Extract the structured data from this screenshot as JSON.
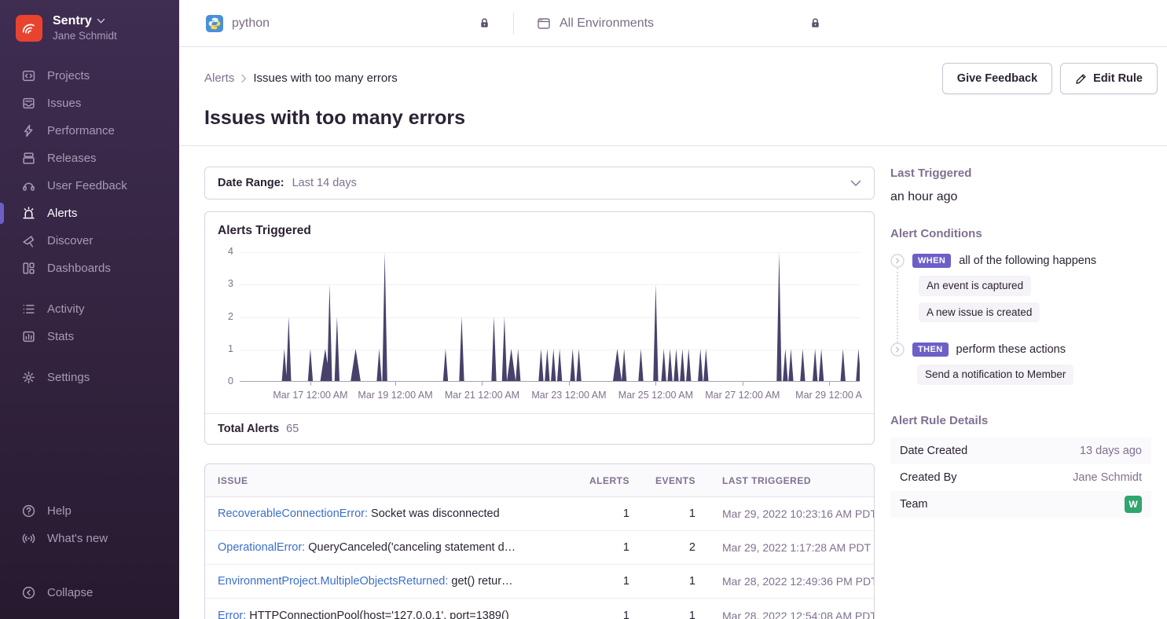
{
  "colors": {
    "accent": "#6C5FC7",
    "link_blue": "#3B6ECC",
    "chart_spike": "#46426B",
    "team_badge_green": "#2EA66E",
    "logo_red": "#E8432F"
  },
  "sidebar": {
    "org_name": "Sentry",
    "user_name": "Jane Schmidt",
    "primary": [
      {
        "label": "Projects"
      },
      {
        "label": "Issues"
      },
      {
        "label": "Performance"
      },
      {
        "label": "Releases"
      },
      {
        "label": "User Feedback"
      },
      {
        "label": "Alerts",
        "active": true
      },
      {
        "label": "Discover"
      },
      {
        "label": "Dashboards"
      }
    ],
    "secondary": [
      {
        "label": "Activity"
      },
      {
        "label": "Stats"
      }
    ],
    "tertiary": [
      {
        "label": "Settings"
      }
    ],
    "footer": [
      {
        "label": "Help"
      },
      {
        "label": "What's new"
      }
    ],
    "collapse_label": "Collapse"
  },
  "topbar": {
    "project": "python",
    "environment": "All Environments"
  },
  "header": {
    "breadcrumb_parent": "Alerts",
    "breadcrumb_current": "Issues with too many errors",
    "title": "Issues with too many errors",
    "give_feedback_label": "Give Feedback",
    "edit_rule_label": "Edit Rule"
  },
  "filters": {
    "date_range_label": "Date Range:",
    "date_range_value": "Last 14 days"
  },
  "chart_data": {
    "type": "area",
    "title": "Alerts Triggered",
    "ylabel": "",
    "ylim": [
      0,
      4
    ],
    "yticks": [
      0,
      1,
      2,
      3,
      4
    ],
    "grid": true,
    "xticks": [
      {
        "pos": 11.4,
        "label": "Mar 17 12:00 AM"
      },
      {
        "pos": 25.1,
        "label": "Mar 19 12:00 AM"
      },
      {
        "pos": 39.1,
        "label": "Mar 21 12:00 AM"
      },
      {
        "pos": 53.1,
        "label": "Mar 23 12:00 AM"
      },
      {
        "pos": 67.1,
        "label": "Mar 25 12:00 AM"
      },
      {
        "pos": 81.1,
        "label": "Mar 27 12:00 AM"
      },
      {
        "pos": 95.0,
        "label": "Mar 29 12:00 A"
      }
    ],
    "spikes": [
      [
        7.2,
        1
      ],
      [
        7.9,
        2
      ],
      [
        11.4,
        1
      ],
      [
        13.8,
        1,
        8
      ],
      [
        14.5,
        3
      ],
      [
        15.7,
        2
      ],
      [
        18.7,
        1,
        8
      ],
      [
        22.5,
        1
      ],
      [
        23.4,
        4
      ],
      [
        33.2,
        1
      ],
      [
        35.8,
        2
      ],
      [
        41.0,
        2
      ],
      [
        42.7,
        2
      ],
      [
        43.8,
        1,
        7
      ],
      [
        44.9,
        1
      ],
      [
        48.6,
        1
      ],
      [
        49.6,
        1
      ],
      [
        50.6,
        1
      ],
      [
        51.6,
        1
      ],
      [
        53.7,
        1
      ],
      [
        54.7,
        1
      ],
      [
        60.9,
        1,
        7
      ],
      [
        62.0,
        1
      ],
      [
        64.7,
        1
      ],
      [
        67.1,
        3
      ],
      [
        68.4,
        1
      ],
      [
        69.4,
        1
      ],
      [
        70.4,
        1
      ],
      [
        71.4,
        1
      ],
      [
        72.4,
        1
      ],
      [
        74.3,
        1
      ],
      [
        75.2,
        1
      ],
      [
        87.0,
        4
      ],
      [
        88.0,
        1
      ],
      [
        88.9,
        1
      ],
      [
        90.8,
        1
      ],
      [
        92.8,
        1
      ],
      [
        93.8,
        1
      ],
      [
        97.3,
        1
      ],
      [
        99.8,
        1
      ]
    ]
  },
  "summary": {
    "total_label": "Total Alerts",
    "total_value": "65"
  },
  "table": {
    "columns": [
      "ISSUE",
      "ALERTS",
      "EVENTS",
      "LAST TRIGGERED"
    ],
    "rows": [
      {
        "type": "RecoverableConnectionError:",
        "desc": " Socket was disconnected",
        "alerts": "1",
        "events": "1",
        "last_triggered": "Mar 29, 2022 10:23:16 AM PDT"
      },
      {
        "type": "OperationalError:",
        "desc": " QueryCanceled('canceling statement d…",
        "alerts": "1",
        "events": "2",
        "last_triggered": "Mar 29, 2022 1:17:28 AM PDT"
      },
      {
        "type": "EnvironmentProject.MultipleObjectsReturned:",
        "desc": " get() retur…",
        "alerts": "1",
        "events": "1",
        "last_triggered": "Mar 28, 2022 12:49:36 PM PDT"
      },
      {
        "type": "Error:",
        "desc": " HTTPConnectionPool(host='127.0.0.1', port=1389()",
        "alerts": "1",
        "events": "1",
        "last_triggered": "Mar 28, 2022 12:54:08 AM PDT"
      }
    ]
  },
  "panel": {
    "last_triggered_label": "Last Triggered",
    "last_triggered_value": "an hour ago",
    "conditions_label": "Alert Conditions",
    "when_badge": "WHEN",
    "when_text": "all of the following happens",
    "when_items": [
      "An event is captured",
      "A new issue is created"
    ],
    "then_badge": "THEN",
    "then_text": "perform these actions",
    "then_items": [
      "Send a notification to Member"
    ],
    "details_label": "Alert Rule Details",
    "details": [
      {
        "key": "Date Created",
        "value": "13 days ago"
      },
      {
        "key": "Created By",
        "value": "Jane Schmidt"
      },
      {
        "key": "Team",
        "value": "W"
      }
    ]
  }
}
